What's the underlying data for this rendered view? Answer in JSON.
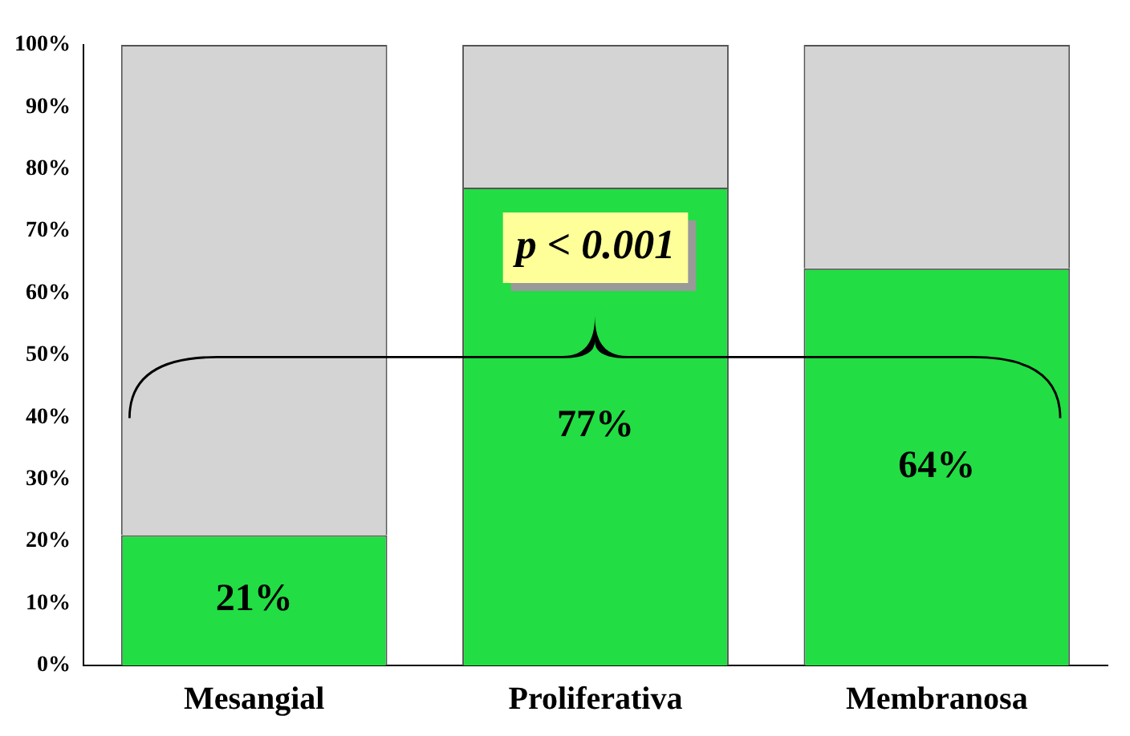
{
  "chart_data": {
    "type": "bar",
    "stacked": true,
    "categories": [
      "Mesangial",
      "Proliferativa",
      "Membranosa"
    ],
    "series": [
      {
        "color": "#22dd44",
        "values": [
          21,
          77,
          64
        ],
        "value_labels": [
          "21%",
          "77%",
          "64%"
        ]
      },
      {
        "color": "#d4d4d4",
        "values": [
          79,
          23,
          36
        ]
      }
    ],
    "ylim": [
      0,
      100
    ],
    "yticks": [
      {
        "value": 0,
        "label": "0%"
      },
      {
        "value": 10,
        "label": "10%"
      },
      {
        "value": 20,
        "label": "20%"
      },
      {
        "value": 30,
        "label": "30%"
      },
      {
        "value": 40,
        "label": "40%"
      },
      {
        "value": 50,
        "label": "50%"
      },
      {
        "value": 60,
        "label": "60%"
      },
      {
        "value": 70,
        "label": "70%"
      },
      {
        "value": 80,
        "label": "80%"
      },
      {
        "value": 90,
        "label": "90%"
      },
      {
        "value": 100,
        "label": "100%"
      }
    ],
    "grid": false,
    "legend": false,
    "annotations": [
      "p < 0.001"
    ]
  }
}
